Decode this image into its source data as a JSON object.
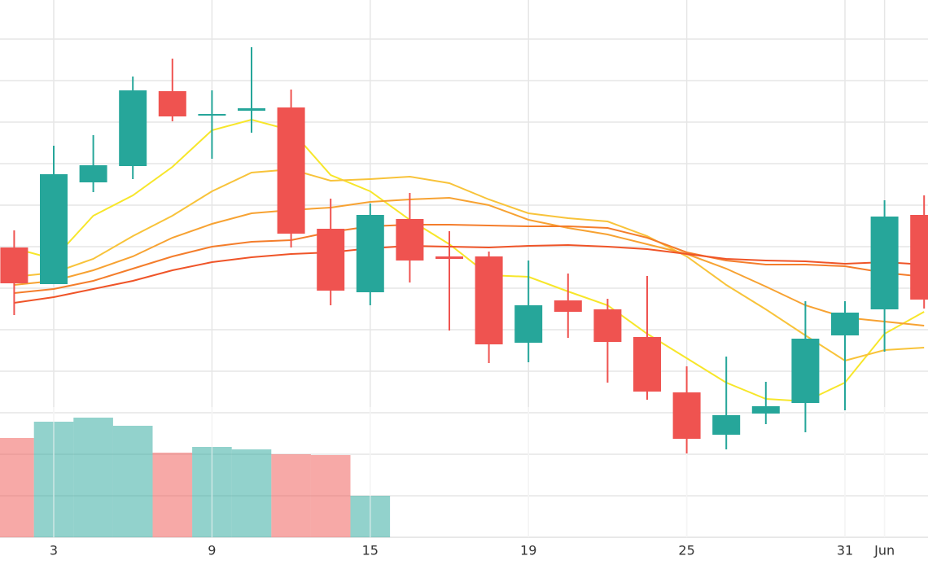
{
  "chart_data": {
    "type": "candlestick",
    "categories": [
      null,
      "3",
      null,
      null,
      null,
      "9",
      null,
      null,
      null,
      "15",
      null,
      null,
      null,
      "19",
      null,
      null,
      null,
      "25",
      null,
      null,
      null,
      "31",
      "Jun",
      null
    ],
    "open": [
      356,
      311,
      436,
      456,
      548,
      518,
      524,
      528,
      379,
      301,
      391,
      345,
      345,
      239,
      291,
      280,
      246,
      178,
      126,
      152,
      165,
      248,
      280,
      396
    ],
    "close": [
      312,
      446,
      457,
      549,
      517,
      520,
      527,
      373,
      303,
      396,
      340,
      342,
      237,
      285,
      277,
      240,
      179,
      121,
      150,
      161,
      244,
      276,
      394,
      292
    ],
    "high": [
      377,
      481,
      494,
      566,
      588,
      549,
      602,
      550,
      416,
      410,
      423,
      376,
      351,
      340,
      324,
      293,
      321,
      210,
      222,
      191,
      290,
      290,
      414,
      420
    ],
    "low": [
      273,
      311,
      424,
      440,
      511,
      465,
      497,
      356,
      285,
      285,
      313,
      254,
      214,
      215,
      245,
      190,
      169,
      103,
      108,
      139,
      129,
      156,
      228,
      281
    ],
    "up_color": "#26a69a",
    "down_color": "#ef5350",
    "volume": [
      122,
      142,
      147,
      137,
      104,
      111,
      108,
      102,
      101,
      51,
      null,
      null,
      null,
      null,
      null,
      null,
      null,
      null,
      null,
      null,
      null,
      null,
      null,
      null
    ],
    "moving_averages": [
      {
        "color": "#f7e62a",
        "values": [
          355,
          342,
          395,
          420,
          455,
          500,
          513,
          500,
          445,
          425,
          390,
          360,
          322,
          320,
          302,
          285,
          250,
          220,
          190,
          170,
          167,
          190,
          250,
          277
        ]
      },
      {
        "color": "#f8c33a",
        "values": [
          320,
          325,
          342,
          370,
          395,
          425,
          448,
          452,
          438,
          440,
          443,
          435,
          415,
          398,
          392,
          388,
          370,
          345,
          310,
          280,
          248,
          217,
          230,
          233
        ]
      },
      {
        "color": "#f7a232",
        "values": [
          310,
          315,
          328,
          345,
          368,
          385,
          398,
          402,
          405,
          412,
          415,
          417,
          408,
          390,
          380,
          372,
          360,
          348,
          330,
          308,
          285,
          270,
          265,
          260
        ]
      },
      {
        "color": "#f47d2b",
        "values": [
          300,
          305,
          315,
          330,
          345,
          357,
          363,
          365,
          375,
          382,
          384,
          384,
          383,
          382,
          382,
          380,
          368,
          350,
          340,
          335,
          335,
          333,
          325,
          320
        ]
      },
      {
        "color": "#ef5428",
        "values": [
          288,
          295,
          305,
          315,
          328,
          338,
          344,
          348,
          350,
          355,
          358,
          357,
          356,
          358,
          359,
          357,
          354,
          348,
          342,
          340,
          339,
          336,
          338,
          335
        ]
      }
    ],
    "ylim": [
      0,
      660
    ],
    "yticks": [
      51,
      102,
      153,
      204,
      255,
      306,
      357,
      408,
      459,
      510,
      561,
      612
    ],
    "grid": true
  }
}
